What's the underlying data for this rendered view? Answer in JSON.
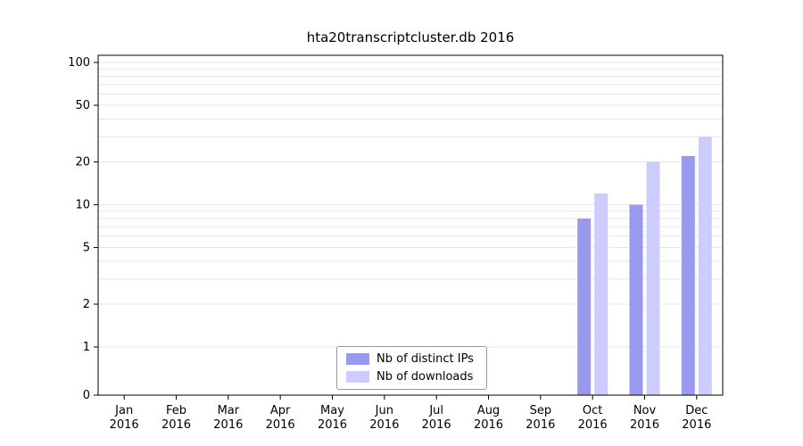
{
  "chart_data": {
    "type": "bar",
    "title": "hta20transcriptcluster.db 2016",
    "year_label": "2016",
    "months": [
      "Jan",
      "Feb",
      "Mar",
      "Apr",
      "May",
      "Jun",
      "Jul",
      "Aug",
      "Sep",
      "Oct",
      "Nov",
      "Dec"
    ],
    "y_axis": {
      "scale": "log-with-zero",
      "ticks": [
        0,
        1,
        2,
        5,
        10,
        20,
        50,
        100
      ],
      "gridlines": [
        1,
        2,
        3,
        4,
        5,
        6,
        7,
        8,
        9,
        10,
        20,
        30,
        40,
        50,
        60,
        70,
        80,
        90,
        100
      ],
      "ylim": [
        0,
        100
      ]
    },
    "series": [
      {
        "name": "Nb of distinct IPs",
        "color": "#9999ed",
        "values": [
          0,
          0,
          0,
          0,
          0,
          0,
          0,
          0,
          0,
          8,
          10,
          22
        ]
      },
      {
        "name": "Nb of downloads",
        "color": "#ccccff",
        "values": [
          0,
          0,
          0,
          0,
          0,
          0,
          0,
          0,
          0,
          12,
          20,
          30
        ]
      }
    ],
    "legend_position": "bottom-center",
    "grid_color": "#e7e7e7",
    "axis_color": "#000000"
  }
}
